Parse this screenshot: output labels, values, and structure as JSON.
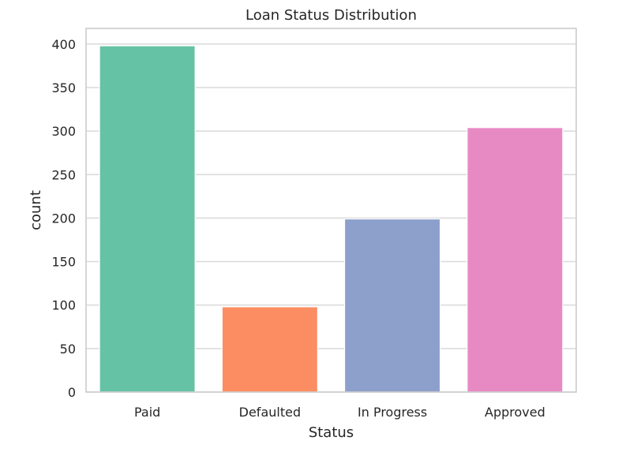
{
  "chart_data": {
    "type": "bar",
    "title": "Loan Status Distribution",
    "xlabel": "Status",
    "ylabel": "count",
    "categories": [
      "Paid",
      "Defaulted",
      "In Progress",
      "Approved"
    ],
    "values": [
      398,
      98,
      199,
      304
    ],
    "colors": [
      "#66c2a5",
      "#fc8d62",
      "#8da0cb",
      "#e78ac3"
    ],
    "yticks": [
      0,
      50,
      100,
      150,
      200,
      250,
      300,
      350,
      400
    ],
    "ylim": [
      0,
      418
    ],
    "grid": true,
    "legend": "none"
  }
}
